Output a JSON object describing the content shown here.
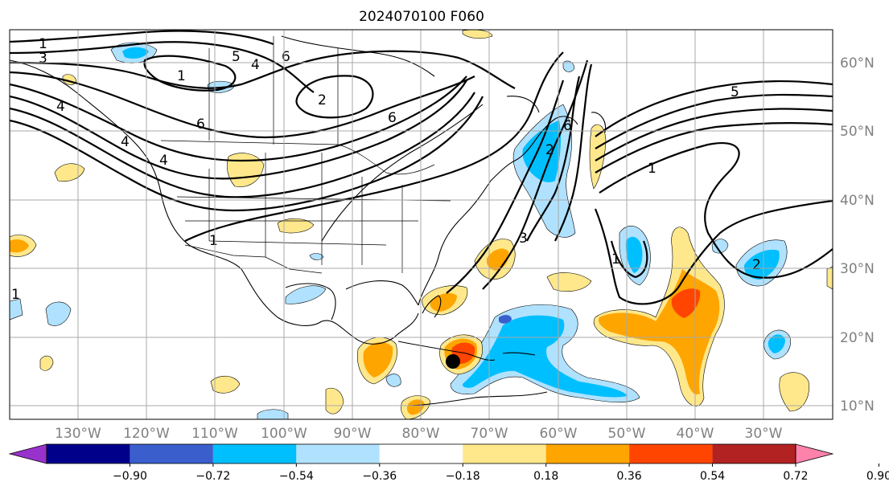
{
  "title": "2024070100 F060",
  "lat_labels": [
    "60°N",
    "50°N",
    "40°N",
    "30°N",
    "20°N",
    "10°N"
  ],
  "lon_labels": [
    "130°W",
    "120°W",
    "110°W",
    "100°W",
    "90°W",
    "80°W",
    "70°W",
    "60°W",
    "50°W",
    "40°W",
    "30°W"
  ],
  "colorbar": {
    "ticks": [
      "−0.90",
      "−0.72",
      "−0.54",
      "−0.36",
      "−0.18",
      "0.18",
      "0.36",
      "0.54",
      "0.72",
      "0.90"
    ],
    "colors": [
      "#9932cc",
      "#00008b",
      "#3a5fcd",
      "#00bfff",
      "#b0e2ff",
      "#ffffff",
      "#ffe88c",
      "#ffa500",
      "#ff4500",
      "#b22222",
      "#ff82ab"
    ]
  },
  "contour_labels": [
    "1",
    "3",
    "5",
    "4",
    "6",
    "1",
    "2",
    "6",
    "6",
    "4",
    "4",
    "1",
    "6",
    "2",
    "1",
    "4",
    "3",
    "5",
    "1",
    "1",
    "2"
  ],
  "marker": {
    "description": "storm-center",
    "color": "#000000"
  }
}
